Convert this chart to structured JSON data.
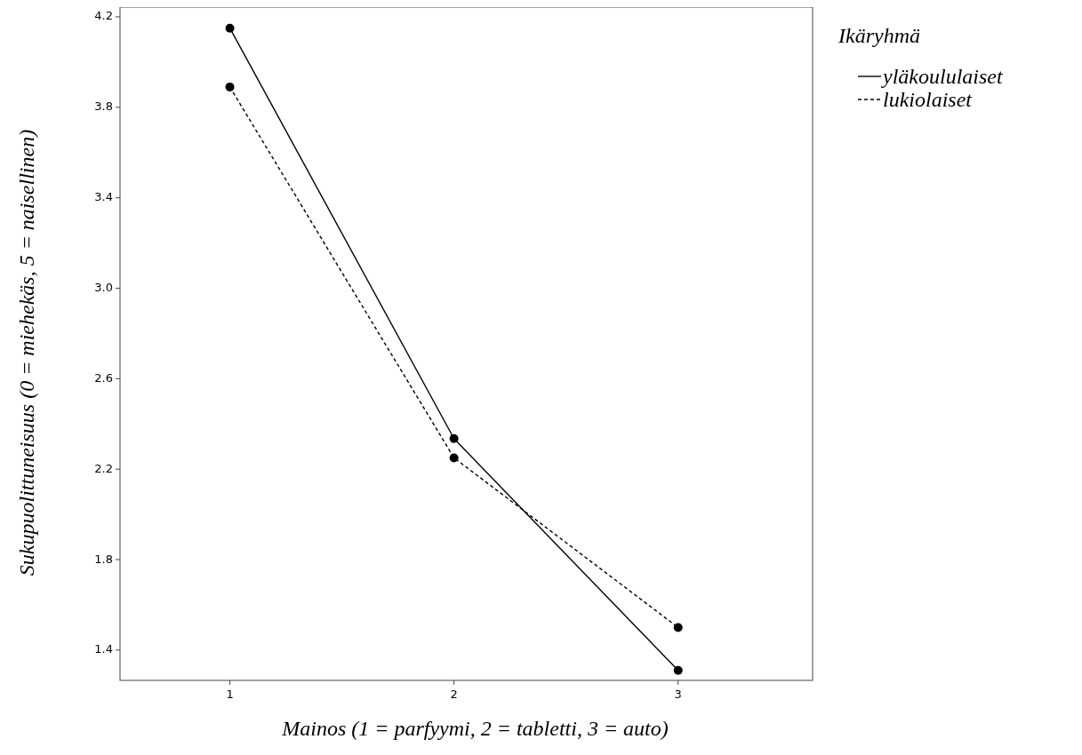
{
  "chart_data": {
    "type": "line",
    "xlabel": "Mainos (1 = parfyymi, 2 = tabletti, 3 = auto)",
    "ylabel": "Sukupuolittuneisuus (0 = miehekäs, 5 = naisellinen)",
    "legend_title": "Ikäryhmä",
    "legend": "top right",
    "marker": "circle",
    "x": [
      1,
      2,
      3
    ],
    "xlim": [
      0.51,
      3.6
    ],
    "xticks": [
      1,
      2,
      3
    ],
    "ylim": [
      1.266,
      4.243
    ],
    "yticks": [
      1.4,
      1.8,
      2.2,
      2.6,
      {
        "value": 3,
        "label": "3.0"
      },
      3.4,
      3.8,
      4.2
    ],
    "series": [
      {
        "name": "yläkoululaiset",
        "color": "#000000",
        "line_style": "solid",
        "values": [
          4.15,
          2.335,
          1.31
        ]
      },
      {
        "name": "lukiolaiset",
        "color": "#000000",
        "line_style": "dashed",
        "values": [
          3.89,
          2.25,
          1.5
        ]
      }
    ]
  }
}
